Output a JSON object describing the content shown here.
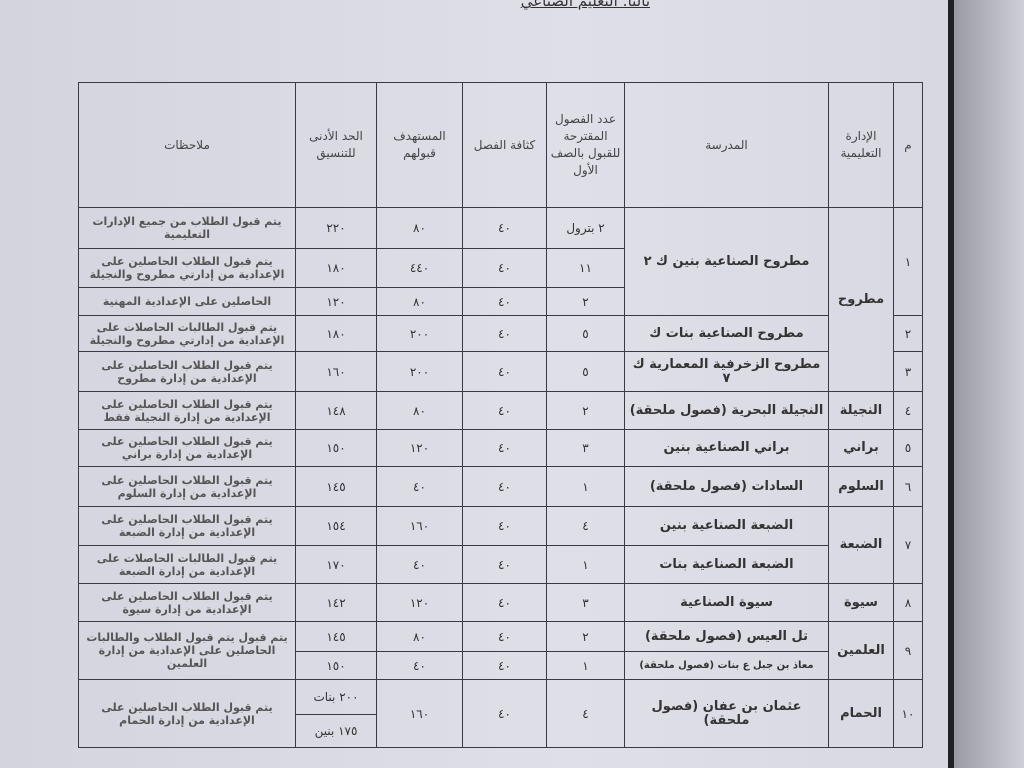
{
  "title": "ثالثا: التعليم الصناعي",
  "headers": {
    "m": "م",
    "admin": "الإدارة التعليمية",
    "school": "المدرسة",
    "classes": "عدد الفصول المقترحة للقبول بالصف الأول",
    "density": "كثافة الفصل",
    "target": "المستهدف قبولهم",
    "min": "الحد الأدنى للتنسيق",
    "notes": "ملاحظات"
  },
  "rows": [
    {
      "m": "١",
      "admin": "مطروح",
      "school": "مطروح الصناعية بنين ك ٢",
      "classes": "٢ بترول",
      "density": "٤٠",
      "target": "٨٠",
      "min": "٢٢٠",
      "notes": "يتم قبول الطلاب من جميع الإدارات التعليمية"
    },
    {
      "classes": "١١",
      "density": "٤٠",
      "target": "٤٤٠",
      "min": "١٨٠",
      "notes": "يتم قبول الطلاب الحاصلين على الإعدادية من إدارتي مطروح والنجيلة"
    },
    {
      "classes": "٢",
      "density": "٤٠",
      "target": "٨٠",
      "min": "١٢٠",
      "notes": "الحاصلين على الإعدادية المهنية"
    },
    {
      "m": "٢",
      "school": "مطروح الصناعية بنات ك",
      "classes": "٥",
      "density": "٤٠",
      "target": "٢٠٠",
      "min": "١٨٠",
      "notes": "يتم قبول الطالبات الحاصلات على الإعدادية من إدارتي مطروح والنجيلة"
    },
    {
      "m": "٣",
      "school": "مطروح الزخرفية المعمارية ك ٧",
      "classes": "٥",
      "density": "٤٠",
      "target": "٢٠٠",
      "min": "١٦٠",
      "notes": "يتم قبول الطلاب الحاصلين على الإعدادية من إدارة مطروح"
    },
    {
      "m": "٤",
      "admin": "النجيلة",
      "school": "النجيلة البحرية (فصول ملحقة)",
      "classes": "٢",
      "density": "٤٠",
      "target": "٨٠",
      "min": "١٤٨",
      "notes": "يتم قبول الطلاب الحاصلين على الإعدادية من إدارة النجيلة فقط"
    },
    {
      "m": "٥",
      "admin": "براني",
      "school": "براني الصناعية بنين",
      "classes": "٣",
      "density": "٤٠",
      "target": "١٢٠",
      "min": "١٥٠",
      "notes": "يتم قبول الطلاب الحاصلين على الإعدادية من إدارة براني"
    },
    {
      "m": "٦",
      "admin": "السلوم",
      "school": "السادات (فصول ملحقة)",
      "classes": "١",
      "density": "٤٠",
      "target": "٤٠",
      "min": "١٤٥",
      "notes": "يتم قبول الطلاب الحاصلين على الإعدادية من إدارة السلوم"
    },
    {
      "m": "٧",
      "admin": "الضبعة",
      "school": "الضبعة الصناعية بنين",
      "classes": "٤",
      "density": "٤٠",
      "target": "١٦٠",
      "min": "١٥٤",
      "notes": "يتم قبول الطلاب الحاصلين على الإعدادية من إدارة الضبعة"
    },
    {
      "school": "الضبعة الصناعية بنات",
      "classes": "١",
      "density": "٤٠",
      "target": "٤٠",
      "min": "١٧٠",
      "notes": "يتم قبول الطالبات الحاصلات على الإعدادية من إدارة الضبعة"
    },
    {
      "m": "٨",
      "admin": "سيوة",
      "school": "سيوة الصناعية",
      "classes": "٣",
      "density": "٤٠",
      "target": "١٢٠",
      "min": "١٤٢",
      "notes": "يتم قبول الطلاب الحاصلين على الإعدادية من إدارة سيوة"
    },
    {
      "m": "٩",
      "admin": "العلمين",
      "school": "تل العيس (فصول ملحقة)",
      "classes": "٢",
      "density": "٤٠",
      "target": "٨٠",
      "min": "١٤٥",
      "notes": "يتم قبول يتم قبول الطلاب والطالبات الحاصلين على الإعدادية من إدارة العلمين"
    },
    {
      "school": "معاذ بن جبل ع بنات (فصول ملحقة)",
      "classes": "١",
      "density": "٤٠",
      "target": "٤٠",
      "min": "١٥٠"
    },
    {
      "m": "١٠",
      "admin": "الحمام",
      "school": "عثمان بن عفان (فصول ملحقة)",
      "classes": "٤",
      "density": "٤٠",
      "target": "١٦٠",
      "min": "٢٠٠ بنات",
      "notes": "يتم قبول الطلاب الحاصلين على الإعدادية من إدارة الحمام"
    },
    {
      "min": "١٧٥ بنين"
    }
  ]
}
